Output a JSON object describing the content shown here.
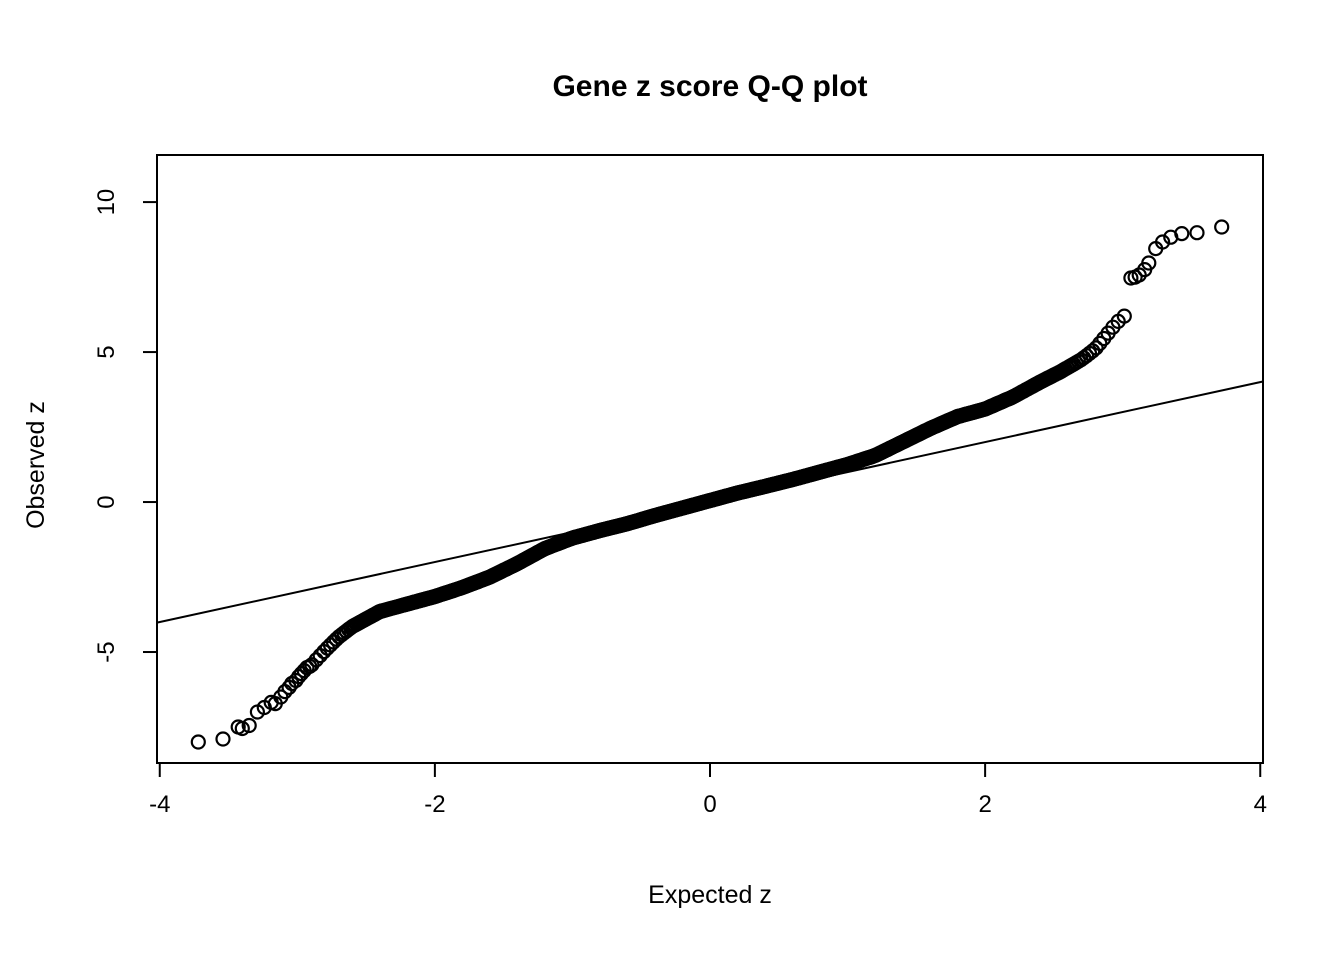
{
  "figure": {
    "background": "#ffffff",
    "foreground": "#000000"
  },
  "chart_data": {
    "type": "scatter",
    "title": "Gene z score Q-Q plot",
    "xlabel": "Expected z",
    "ylabel": "Observed z",
    "xlim": [
      -4.02,
      4.02
    ],
    "ylim": [
      -8.7,
      11.57
    ],
    "x_ticks": [
      -4,
      -2,
      0,
      2,
      4
    ],
    "x_tick_labels": [
      "-4",
      "-2",
      "0",
      "2",
      "4"
    ],
    "y_ticks": [
      -5,
      0,
      5,
      10
    ],
    "y_tick_labels": [
      "-5",
      "0",
      "5",
      "10"
    ],
    "grid": false,
    "legend": null,
    "color": "#000000",
    "marker": {
      "shape": "open-circle",
      "radius_px": 6.5,
      "stroke_px": 2.2
    },
    "reference_line": {
      "slope": 1,
      "intercept": 0,
      "stroke_px": 2
    },
    "n_quantiles": 5000,
    "band_x_range": [
      -2.905,
      3.05
    ],
    "curve_control_points": [
      [
        -3.8,
        -8.1
      ],
      [
        -3.0,
        -5.85
      ],
      [
        -2.9,
        -5.45
      ],
      [
        -2.8,
        -4.95
      ],
      [
        -2.7,
        -4.5
      ],
      [
        -2.6,
        -4.15
      ],
      [
        -2.5,
        -3.9
      ],
      [
        -2.4,
        -3.65
      ],
      [
        -2.2,
        -3.4
      ],
      [
        -2.0,
        -3.15
      ],
      [
        -1.8,
        -2.85
      ],
      [
        -1.6,
        -2.5
      ],
      [
        -1.4,
        -2.05
      ],
      [
        -1.2,
        -1.55
      ],
      [
        -1.0,
        -1.2
      ],
      [
        -0.8,
        -0.95
      ],
      [
        -0.6,
        -0.72
      ],
      [
        -0.4,
        -0.45
      ],
      [
        -0.2,
        -0.2
      ],
      [
        0.0,
        0.05
      ],
      [
        0.2,
        0.3
      ],
      [
        0.4,
        0.52
      ],
      [
        0.6,
        0.75
      ],
      [
        0.8,
        1.0
      ],
      [
        1.0,
        1.25
      ],
      [
        1.2,
        1.55
      ],
      [
        1.4,
        2.0
      ],
      [
        1.6,
        2.45
      ],
      [
        1.8,
        2.85
      ],
      [
        2.0,
        3.1
      ],
      [
        2.2,
        3.5
      ],
      [
        2.4,
        4.0
      ],
      [
        2.55,
        4.35
      ],
      [
        2.7,
        4.75
      ],
      [
        2.8,
        5.1
      ],
      [
        2.88,
        5.55
      ],
      [
        2.95,
        5.95
      ],
      [
        3.0,
        6.15
      ],
      [
        3.06,
        6.4
      ]
    ],
    "left_tail_points": [
      [
        -3.72,
        -8.0
      ],
      [
        -3.54,
        -7.9
      ],
      [
        -3.43,
        -7.5
      ],
      [
        -3.4,
        -7.55
      ],
      [
        -3.35,
        -7.45
      ],
      [
        -3.29,
        -7.0
      ],
      [
        -3.24,
        -6.85
      ],
      [
        -3.19,
        -6.68
      ],
      [
        -3.16,
        -6.72
      ],
      [
        -3.12,
        -6.5
      ],
      [
        -3.09,
        -6.32
      ],
      [
        -3.06,
        -6.18
      ],
      [
        -3.04,
        -6.05
      ],
      [
        -3.01,
        -5.95
      ],
      [
        -2.99,
        -5.82
      ],
      [
        -2.97,
        -5.72
      ],
      [
        -2.95,
        -5.62
      ],
      [
        -2.93,
        -5.52
      ],
      [
        -2.91,
        -5.48
      ]
    ],
    "right_tail_points": [
      [
        3.06,
        7.47
      ],
      [
        3.09,
        7.5
      ],
      [
        3.12,
        7.57
      ],
      [
        3.16,
        7.75
      ],
      [
        3.19,
        7.97
      ],
      [
        3.24,
        8.45
      ],
      [
        3.29,
        8.67
      ],
      [
        3.35,
        8.83
      ],
      [
        3.43,
        8.95
      ],
      [
        3.54,
        8.98
      ],
      [
        3.72,
        9.17
      ]
    ]
  }
}
